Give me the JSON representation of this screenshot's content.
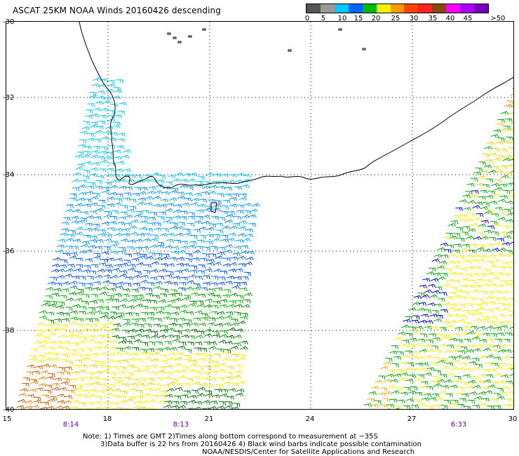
{
  "title": "ASCAT 25KM NOAA Winds 20160426 descending",
  "colorbar": {
    "colors": [
      "#555555",
      "#999999",
      "#00c8ff",
      "#0064ff",
      "#00bb00",
      "#ffee00",
      "#ff9900",
      "#ff4400",
      "#ff2222",
      "#8b4513",
      "#ff00ff",
      "#aa00ff",
      "#7700bb"
    ],
    "labels": [
      "0",
      "5",
      "10",
      "15",
      "20",
      "25",
      "30",
      "35",
      "40",
      "45",
      ">50 knots"
    ]
  },
  "axes": {
    "lat_labels": [
      "-30",
      "-32",
      "-34",
      "-36",
      "-38",
      "-40"
    ],
    "lon_labels": [
      "15",
      "18",
      "21",
      "24",
      "27",
      "30"
    ]
  },
  "pass_times": [
    "8:14",
    "8:13",
    "6:33"
  ],
  "notes": {
    "line1": "Note: 1) Times are GMT 2)Times along bottom correspond to measurement at ~35S",
    "line2": "3)Data buffer is 22 hrs from 20160426 4) Black wind barbs indicate possible contamination",
    "line3": "NOAA/NESDIS/Center for Satellite Applications and Research"
  }
}
